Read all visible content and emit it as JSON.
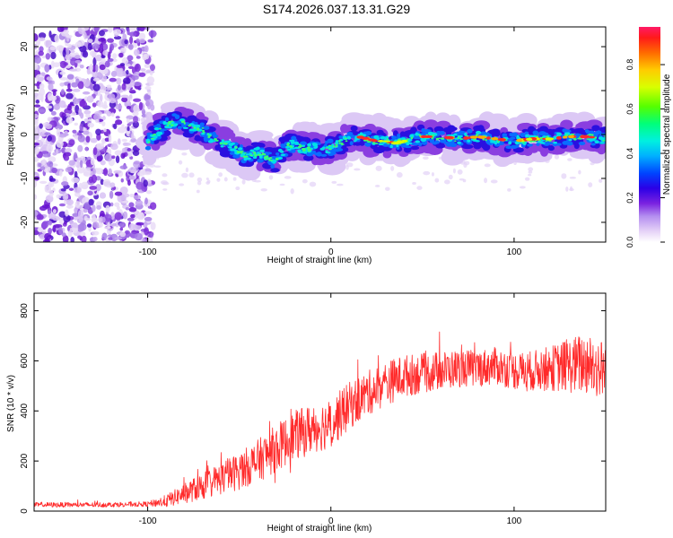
{
  "title": "S174.2026.037.13.31.G29",
  "chart_data": [
    {
      "type": "heatmap",
      "name": "spectrogram",
      "xlabel": "Height of straight line (km)",
      "ylabel": "Frequency (Hz)",
      "xlim": [
        -162,
        150
      ],
      "ylim": [
        -24.5,
        24.5
      ],
      "xticks": [
        -100,
        0,
        100
      ],
      "xtick_labels": [
        "-100",
        "0",
        "100"
      ],
      "yticks": [
        20,
        10,
        0,
        -10,
        -20
      ],
      "ytick_labels": [
        "20",
        "10",
        "0",
        "-10",
        "-20"
      ],
      "colorbar": {
        "label": "Normalized spectral amplitude",
        "range": [
          0,
          0.97
        ],
        "ticks": [
          0.0,
          0.2,
          0.4,
          0.6,
          0.8
        ],
        "tick_labels": [
          "0.0",
          "0.2",
          "0.4",
          "0.6",
          "0.8"
        ],
        "colormap": [
          "#ffffff",
          "#e8d4f5",
          "#b99cf0",
          "#8a2be2",
          "#3b0fd6",
          "#0000ff",
          "#00a8ff",
          "#00ffd5",
          "#00ff66",
          "#66ff00",
          "#ffff00",
          "#ffae00",
          "#ff3300",
          "#ff1f4e"
        ]
      },
      "ridge_line": [
        {
          "x": -100,
          "y": -2
        },
        {
          "x": -95,
          "y": 0.5
        },
        {
          "x": -90,
          "y": 2
        },
        {
          "x": -85,
          "y": 3
        },
        {
          "x": -80,
          "y": 2.5
        },
        {
          "x": -75,
          "y": 1.5
        },
        {
          "x": -70,
          "y": 1
        },
        {
          "x": -65,
          "y": -1
        },
        {
          "x": -60,
          "y": -2
        },
        {
          "x": -55,
          "y": -2.5
        },
        {
          "x": -50,
          "y": -4
        },
        {
          "x": -45,
          "y": -5
        },
        {
          "x": -40,
          "y": -4
        },
        {
          "x": -35,
          "y": -5.5
        },
        {
          "x": -30,
          "y": -6
        },
        {
          "x": -25,
          "y": -3
        },
        {
          "x": -20,
          "y": -2
        },
        {
          "x": -15,
          "y": -3.5
        },
        {
          "x": -10,
          "y": -3
        },
        {
          "x": -5,
          "y": -3.5
        },
        {
          "x": 0,
          "y": -3
        },
        {
          "x": 5,
          "y": -2
        },
        {
          "x": 10,
          "y": -1
        },
        {
          "x": 15,
          "y": -0.5
        },
        {
          "x": 20,
          "y": -1
        },
        {
          "x": 25,
          "y": -1.5
        },
        {
          "x": 30,
          "y": -1.5
        },
        {
          "x": 35,
          "y": -2
        },
        {
          "x": 40,
          "y": -1.5
        },
        {
          "x": 45,
          "y": -1
        },
        {
          "x": 50,
          "y": -0.5
        },
        {
          "x": 60,
          "y": -0.5
        },
        {
          "x": 70,
          "y": -1
        },
        {
          "x": 80,
          "y": -0.5
        },
        {
          "x": 90,
          "y": -1
        },
        {
          "x": 100,
          "y": -1.5
        },
        {
          "x": 110,
          "y": -1
        },
        {
          "x": 120,
          "y": -1
        },
        {
          "x": 130,
          "y": -0.5
        },
        {
          "x": 140,
          "y": -0.5
        },
        {
          "x": 150,
          "y": -1
        }
      ]
    },
    {
      "type": "line",
      "name": "snr",
      "xlabel": "Height of straight line (km)",
      "ylabel": "SNR (10 * v/v)",
      "xlim": [
        -162,
        150
      ],
      "ylim": [
        0,
        870
      ],
      "xticks": [
        -100,
        0,
        100
      ],
      "xtick_labels": [
        "-100",
        "0",
        "100"
      ],
      "yticks": [
        0,
        200,
        400,
        600,
        800
      ],
      "ytick_labels": [
        "0",
        "200",
        "400",
        "600",
        "800"
      ],
      "color": "#ff2a2a",
      "series": [
        {
          "name": "SNR envelope",
          "x": [
            -162,
            -130,
            -100,
            -90,
            -80,
            -70,
            -60,
            -50,
            -40,
            -30,
            -20,
            -10,
            0,
            10,
            20,
            30,
            40,
            50,
            60,
            70,
            80,
            90,
            100,
            110,
            120,
            130,
            140,
            150
          ],
          "y": [
            25,
            25,
            28,
            40,
            70,
            100,
            130,
            160,
            200,
            250,
            300,
            330,
            350,
            420,
            470,
            510,
            540,
            550,
            560,
            570,
            570,
            580,
            560,
            560,
            570,
            580,
            590,
            560
          ],
          "spread": [
            10,
            10,
            10,
            25,
            40,
            55,
            65,
            75,
            85,
            95,
            100,
            100,
            100,
            95,
            90,
            90,
            85,
            80,
            80,
            75,
            75,
            75,
            75,
            80,
            90,
            110,
            130,
            120
          ]
        }
      ]
    }
  ]
}
